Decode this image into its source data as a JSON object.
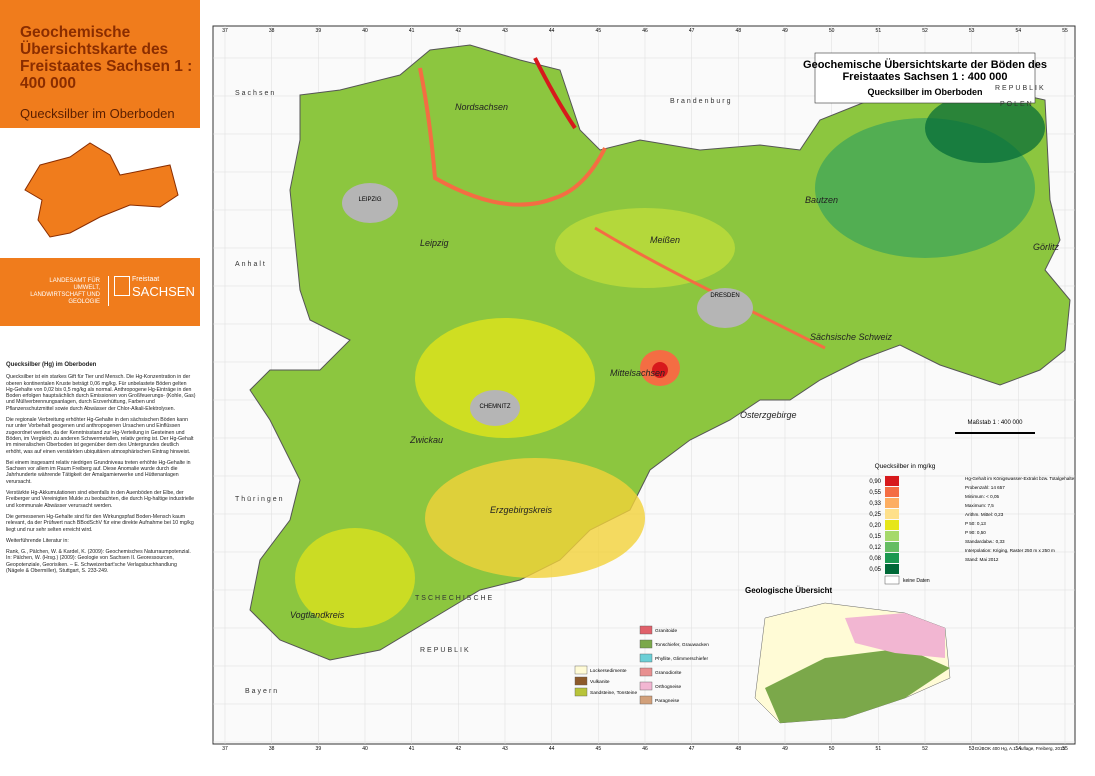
{
  "header": {
    "title": "Geochemische Übersichtskarte des Freistaates Sachsen 1 : 400 000",
    "subtitle": "Quecksilber im Oberboden"
  },
  "institution": {
    "agency": "LANDESAMT FÜR UMWELT, LANDWIRTSCHAFT UND GEOLOGIE",
    "state_small": "Freistaat",
    "state": "SACHSEN"
  },
  "description": {
    "heading": "Quecksilber (Hg) im Oberboden",
    "paragraphs": [
      "Quecksilber ist ein starkes Gift für Tier und Mensch. Die Hg-Konzentration in der oberen kontinentalen Kruste beträgt 0,06 mg/kg. Für unbelastete Böden gelten Hg-Gehalte von 0,02 bis 0,5 mg/kg als normal. Anthropogene Hg-Einträge in den Boden erfolgen hauptsächlich durch Emissionen von Großfeuerungs- (Kohle, Gas) und Müllverbrennungsanlagen, durch Erzverhüttung, Farben und Pflanzenschutzmittel sowie durch Abwässer der Chlor-Alkali-Elektrolysen.",
      "Die regionale Verbreitung erhöhter Hg-Gehalte in den sächsischen Böden kann nur unter Vorbehalt geogenen und anthropogenen Ursachen und Einflüssen zugeordnet werden, da der Kenntnisstand zur Hg-Verteilung in Gesteinen und Böden, im Vergleich zu anderen Schwermetallen, relativ gering ist. Der Hg-Gehalt im mineralischen Oberboden ist gegenüber dem des Untergrundes deutlich erhöht, was auf einen verstärkten ubiquitären atmosphärischen Eintrag hinweist.",
      "Bei einem insgesamt relativ niedrigen Grundniveau treten erhöhte Hg-Gehalte in Sachsen vor allem im Raum Freiberg auf. Diese Anomalie wurde durch die Jahrhunderte währende Tätigkeit der Amalgamierwerke und Hüttenanlagen verursacht.",
      "Verstärkte Hg-Akkumulationen sind ebenfalls in den Auenböden der Elbe, der Freiberger und Vereinigten Mulde zu beobachten, die durch Hg-haltige industrielle und kommunale Abwässer verursacht werden.",
      "Die gemessenen Hg-Gehalte sind für den Wirkungspfad Boden-Mensch kaum relevant, da der Prüfwert nach BBodSchV für eine direkte Aufnahme bei 10 mg/kg liegt und nur sehr selten erreicht wird."
    ],
    "literature_heading": "Weiterführende Literatur in:",
    "literature": "Rank, G., Pälchen, W. & Kardel, K. (2009): Geochemisches Naturraumpotenzial. In: Pälchen, W. (Hrsg.) (2009): Geologie von Sachsen II. Georessourcen, Geopotenziale, Georisiken. – E. Schweizerbart'sche Verlagsbuchhandlung (Nägele & Obermiller), Stuttgart, S. 233-249."
  },
  "map": {
    "title": "Geochemische Übersichtskarte der Böden des Freistaates Sachsen 1 : 400 000",
    "subtitle": "Quecksilber im Oberboden",
    "regions": [
      "Nordsachsen",
      "Leipzig",
      "Meißen",
      "Bautzen",
      "Görlitz",
      "Sächsische Schweiz",
      "Mittelsachsen",
      "Osterzgebirge",
      "Zwickau",
      "Erzgebirgskreis",
      "Vogtlandkreis"
    ],
    "cities": [
      "LEIPZIG",
      "DRESDEN",
      "CHEMNITZ"
    ],
    "neighbors": [
      "Sachsen",
      "Anhalt",
      "Brandenburg",
      "REPUBLIK",
      "POLEN",
      "Thüringen",
      "TSCHECHISCHE",
      "REPUBLIK",
      "Bayern"
    ],
    "grid_labels": [
      37,
      38,
      39,
      40,
      41,
      42,
      43,
      44,
      45,
      46,
      47,
      48,
      49,
      50,
      51,
      52,
      53,
      54,
      55
    ],
    "scale": "Maßstab 1 : 400 000"
  },
  "legend": {
    "title": "Quecksilber in mg/kg",
    "classes": [
      {
        "label": "0,90",
        "color": "#d7191c"
      },
      {
        "label": "0,55",
        "color": "#f46d43"
      },
      {
        "label": "0,33",
        "color": "#fdae61"
      },
      {
        "label": "0,25",
        "color": "#fee08b"
      },
      {
        "label": "0,20",
        "color": "#e6e619"
      },
      {
        "label": "0,15",
        "color": "#a6d96a"
      },
      {
        "label": "0,12",
        "color": "#66bd63"
      },
      {
        "label": "0,08",
        "color": "#1a9850"
      },
      {
        "label": "0,05",
        "color": "#006837"
      }
    ],
    "no_data": "keine Daten",
    "notes": [
      "Hg-Gehalt im Königswasser-Extrakt bzw. Totalgehalte",
      "Probenzahl: 14 657",
      "Minimum: < 0,05",
      "Maximum: 7,5",
      "Arithm. Mittel: 0,23",
      "P 50: 0,13",
      "P 90: 0,50",
      "Standardabw.: 0,33",
      "Interpolation: Kriging, Raster 250 m x 250 m",
      "Stand: Mai 2012"
    ]
  },
  "geology": {
    "title": "Geologische Übersicht",
    "items": [
      {
        "label": "Lockersedimente",
        "color": "#fffbd6"
      },
      {
        "label": "Vulkanite",
        "color": "#8d5a2b"
      },
      {
        "label": "Sandsteine, Tonsteine",
        "color": "#b8c43a"
      },
      {
        "label": "Granitoide",
        "color": "#e0606a"
      },
      {
        "label": "Tonschiefer, Grauwacken",
        "color": "#7ba84a"
      },
      {
        "label": "Phyllite, Glimmerschiefer",
        "color": "#6bcfd6"
      },
      {
        "label": "Granodiorite",
        "color": "#e88f8f"
      },
      {
        "label": "Orthogneise",
        "color": "#f2b6d2"
      },
      {
        "label": "Paragneise",
        "color": "#d2a07a"
      }
    ]
  },
  "footer": "GÜBOK 400 Hg, A.1. Auflage, Freiberg, 2012"
}
